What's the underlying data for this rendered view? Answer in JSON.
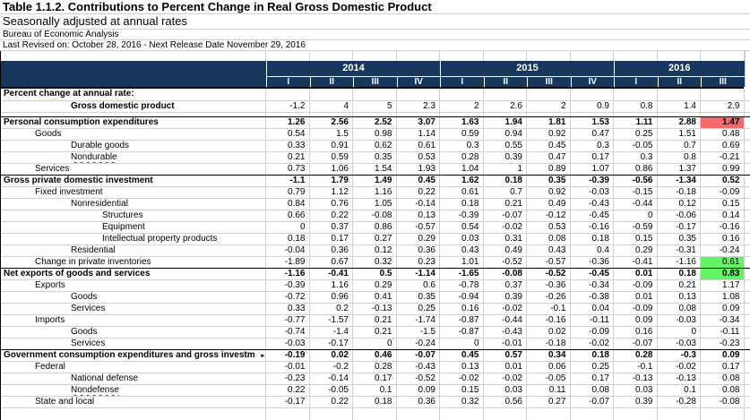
{
  "header": {
    "title": "Table 1.1.2. Contributions to Percent Change in Real Gross Domestic Product",
    "subtitle": "Seasonally adjusted at annual rates",
    "agency": "Bureau of Economic Analysis",
    "revision": "Last Revised on: October 28, 2016 - Next Release Date November 29, 2016"
  },
  "colors": {
    "header_navy": "#17375D",
    "red_cell": "#F8696B",
    "green_cell": "#63F563",
    "gridline": "#D0D0D0",
    "spellcheck_red": "#FF0000"
  },
  "table": {
    "truncation_marker": "▸",
    "year_groups": [
      {
        "label": "2014",
        "span": 4
      },
      {
        "label": "2015",
        "span": 4
      },
      {
        "label": "2016",
        "span": 3
      }
    ],
    "quarters": [
      "I",
      "II",
      "III",
      "IV",
      "I",
      "II",
      "III",
      "IV",
      "I",
      "II",
      "III"
    ],
    "rows": [
      {
        "label": "Percent change at annual rate:",
        "indent": 0,
        "bold": true,
        "values": [
          "",
          "",
          "",
          "",
          "",
          "",
          "",
          "",
          "",
          "",
          ""
        ]
      },
      {
        "label": "Gross domestic product",
        "indent": 2,
        "bold": true,
        "values": [
          "-1.2",
          "4",
          "5",
          "2.3",
          "2",
          "2.6",
          "2",
          "0.9",
          "0.8",
          "1.4",
          "2.9"
        ]
      },
      {
        "type": "spacer"
      },
      {
        "label": "Personal consumption expenditures",
        "indent": 0,
        "bold": true,
        "section": true,
        "values_bold": true,
        "values": [
          "1.26",
          "2.56",
          "2.52",
          "3.07",
          "1.63",
          "1.94",
          "1.81",
          "1.53",
          "1.11",
          "2.88",
          "1.47"
        ],
        "highlights": {
          "10": "red"
        }
      },
      {
        "label": "Goods",
        "indent": 1,
        "values": [
          "0.54",
          "1.5",
          "0.98",
          "1.14",
          "0.59",
          "0.94",
          "0.92",
          "0.47",
          "0.25",
          "1.51",
          "0.48"
        ]
      },
      {
        "label": "Durable goods",
        "indent": 2,
        "values": [
          "0.33",
          "0.91",
          "0.62",
          "0.61",
          "0.3",
          "0.55",
          "0.45",
          "0.3",
          "-0.05",
          "0.7",
          "0.69"
        ]
      },
      {
        "label": "Nondurable goods",
        "indent": 2,
        "misspell": "Nondurable",
        "values": [
          "0.21",
          "0.59",
          "0.35",
          "0.53",
          "0.28",
          "0.39",
          "0.47",
          "0.17",
          "0.3",
          "0.8",
          "-0.21"
        ]
      },
      {
        "label": "Services",
        "indent": 1,
        "values": [
          "0.73",
          "1.06",
          "1.54",
          "1.93",
          "1.04",
          "1",
          "0.89",
          "1.07",
          "0.86",
          "1.37",
          "0.99"
        ]
      },
      {
        "label": "Gross private domestic investment",
        "indent": 0,
        "bold": true,
        "section": true,
        "values_bold": true,
        "values": [
          "-1.1",
          "1.79",
          "1.49",
          "0.45",
          "1.62",
          "0.18",
          "0.35",
          "-0.39",
          "-0.56",
          "-1.34",
          "0.52"
        ]
      },
      {
        "label": "Fixed investment",
        "indent": 1,
        "values": [
          "0.79",
          "1.12",
          "1.16",
          "0.22",
          "0.61",
          "0.7",
          "0.92",
          "-0.03",
          "-0.15",
          "-0.18",
          "-0.09"
        ]
      },
      {
        "label": "Nonresidential",
        "indent": 2,
        "values": [
          "0.84",
          "0.76",
          "1.05",
          "-0.14",
          "0.18",
          "0.21",
          "0.49",
          "-0.43",
          "-0.44",
          "0.12",
          "0.15"
        ]
      },
      {
        "label": "Structures",
        "indent": 3,
        "values": [
          "0.66",
          "0.22",
          "-0.08",
          "0.13",
          "-0.39",
          "-0.07",
          "-0.12",
          "-0.45",
          "0",
          "-0.06",
          "0.14"
        ]
      },
      {
        "label": "Equipment",
        "indent": 3,
        "values": [
          "0",
          "0.37",
          "0.86",
          "-0.57",
          "0.54",
          "-0.02",
          "0.53",
          "-0.16",
          "-0.59",
          "-0.17",
          "-0.16"
        ]
      },
      {
        "label": "Intellectual property products",
        "indent": 3,
        "values": [
          "0.18",
          "0.17",
          "0.27",
          "0.29",
          "0.03",
          "0.31",
          "0.08",
          "0.18",
          "0.15",
          "0.35",
          "0.16"
        ]
      },
      {
        "label": "Residential",
        "indent": 2,
        "values": [
          "-0.04",
          "0.36",
          "0.12",
          "0.36",
          "0.43",
          "0.49",
          "0.43",
          "0.4",
          "0.29",
          "-0.31",
          "-0.24"
        ]
      },
      {
        "label": "Change in private inventories",
        "indent": 1,
        "values": [
          "-1.89",
          "0.67",
          "0.32",
          "0.23",
          "1.01",
          "-0.52",
          "-0.57",
          "-0.36",
          "-0.41",
          "-1.16",
          "0.61"
        ],
        "highlights": {
          "10": "green"
        }
      },
      {
        "label": "Net exports of goods and services",
        "indent": 0,
        "bold": true,
        "section": true,
        "values_bold": true,
        "values": [
          "-1.16",
          "-0.41",
          "0.5",
          "-1.14",
          "-1.65",
          "-0.08",
          "-0.52",
          "-0.45",
          "0.01",
          "0.18",
          "0.83"
        ],
        "highlights": {
          "10": "green"
        }
      },
      {
        "label": "Exports",
        "indent": 1,
        "values": [
          "-0.39",
          "1.16",
          "0.29",
          "0.6",
          "-0.78",
          "0.37",
          "-0.36",
          "-0.34",
          "-0.09",
          "0.21",
          "1.17"
        ]
      },
      {
        "label": "Goods",
        "indent": 2,
        "values": [
          "-0.72",
          "0.96",
          "0.41",
          "0.35",
          "-0.94",
          "0.39",
          "-0.26",
          "-0.38",
          "0.01",
          "0.13",
          "1.08"
        ]
      },
      {
        "label": "Services",
        "indent": 2,
        "values": [
          "0.33",
          "0.2",
          "-0.13",
          "0.25",
          "0.16",
          "-0.02",
          "-0.1",
          "0.04",
          "-0.09",
          "0.08",
          "0.09"
        ]
      },
      {
        "label": "Imports",
        "indent": 1,
        "values": [
          "-0.77",
          "-1.57",
          "0.21",
          "-1.74",
          "-0.87",
          "-0.44",
          "-0.16",
          "-0.11",
          "0.09",
          "-0.03",
          "-0.34"
        ]
      },
      {
        "label": "Goods",
        "indent": 2,
        "values": [
          "-0.74",
          "-1.4",
          "0.21",
          "-1.5",
          "-0.87",
          "-0.43",
          "0.02",
          "-0.09",
          "0.16",
          "0",
          "-0.11"
        ]
      },
      {
        "label": "Services",
        "indent": 2,
        "values": [
          "-0.03",
          "-0.17",
          "0",
          "-0.24",
          "0",
          "-0.01",
          "-0.18",
          "-0.02",
          "-0.07",
          "-0.03",
          "-0.23"
        ]
      },
      {
        "label": "Government consumption expenditures and gross investm",
        "indent": 0,
        "bold": true,
        "section": true,
        "values_bold": true,
        "truncated": true,
        "values": [
          "-0.19",
          "0.02",
          "0.46",
          "-0.07",
          "0.45",
          "0.57",
          "0.34",
          "0.18",
          "0.28",
          "-0.3",
          "0.09"
        ]
      },
      {
        "label": "Federal",
        "indent": 1,
        "values": [
          "-0.01",
          "-0.2",
          "0.28",
          "-0.43",
          "0.13",
          "0.01",
          "0.06",
          "0.25",
          "-0.1",
          "-0.02",
          "0.17"
        ]
      },
      {
        "label": "National defense",
        "indent": 2,
        "values": [
          "-0.23",
          "-0.14",
          "0.17",
          "-0.52",
          "-0.02",
          "-0.02",
          "-0.05",
          "0.17",
          "-0.13",
          "-0.13",
          "0.08"
        ]
      },
      {
        "label": "Nondefense",
        "indent": 2,
        "misspell": "Nondefense",
        "values": [
          "0.22",
          "-0.05",
          "0.1",
          "0.09",
          "0.15",
          "0.03",
          "0.11",
          "0.08",
          "0.03",
          "0.1",
          "0.08"
        ]
      },
      {
        "label": "State and local",
        "indent": 1,
        "values": [
          "-0.17",
          "0.22",
          "0.18",
          "0.36",
          "0.32",
          "0.56",
          "0.27",
          "-0.07",
          "0.39",
          "-0.28",
          "-0.08"
        ]
      },
      {
        "type": "filler"
      }
    ]
  }
}
